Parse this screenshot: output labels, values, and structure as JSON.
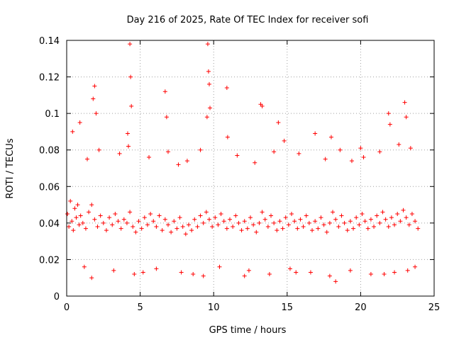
{
  "chart_data": {
    "type": "scatter",
    "title": "Day 216 of 2025, Rate Of TEC Index for receiver sofi",
    "xlabel": "GPS time / hours",
    "ylabel": "ROTI / TECUs",
    "xlim": [
      0,
      25
    ],
    "ylim": [
      0,
      0.14
    ],
    "xticks": [
      0,
      5,
      10,
      15,
      20,
      25
    ],
    "xtick_labels": [
      "0",
      "5",
      "10",
      "15",
      "20",
      "25"
    ],
    "yticks": [
      0,
      0.02,
      0.04,
      0.06,
      0.08,
      0.1,
      0.12,
      0.14
    ],
    "ytick_labels": [
      "0",
      "0.02",
      "0.04",
      "0.06",
      "0.08",
      "0.1",
      "0.12",
      "0.14"
    ],
    "grid": true,
    "marker": "plus",
    "series_color": "#ff0000",
    "series": [
      {
        "name": "ROTI",
        "x": [
          0.05,
          0.15,
          0.25,
          0.35,
          0.45,
          0.55,
          0.65,
          0.75,
          0.85,
          0.95,
          1.1,
          1.3,
          1.5,
          1.7,
          1.9,
          2.1,
          2.3,
          2.5,
          2.7,
          2.9,
          3.1,
          3.3,
          3.5,
          3.7,
          3.9,
          4.1,
          4.3,
          4.5,
          4.7,
          4.9,
          5.1,
          5.3,
          5.5,
          5.7,
          5.9,
          6.1,
          6.3,
          6.5,
          6.7,
          6.9,
          7.1,
          7.3,
          7.5,
          7.7,
          7.9,
          8.1,
          8.3,
          8.5,
          8.7,
          8.9,
          9.1,
          9.3,
          9.5,
          9.7,
          9.9,
          10.1,
          10.3,
          10.5,
          10.7,
          10.9,
          11.1,
          11.3,
          11.5,
          11.7,
          11.9,
          12.1,
          12.3,
          12.5,
          12.7,
          12.9,
          13.1,
          13.3,
          13.5,
          13.7,
          13.9,
          14.1,
          14.3,
          14.5,
          14.7,
          14.9,
          15.1,
          15.3,
          15.5,
          15.7,
          15.9,
          16.1,
          16.3,
          16.5,
          16.7,
          16.9,
          17.1,
          17.3,
          17.5,
          17.7,
          17.9,
          18.1,
          18.3,
          18.5,
          18.7,
          18.9,
          19.1,
          19.3,
          19.5,
          19.7,
          19.9,
          20.1,
          20.3,
          20.5,
          20.7,
          20.9,
          21.1,
          21.3,
          21.5,
          21.7,
          21.9,
          22.1,
          22.3,
          22.5,
          22.7,
          22.9,
          23.1,
          23.3,
          23.5,
          23.7,
          23.9,
          0.4,
          0.9,
          1.8,
          1.9,
          2.0,
          4.3,
          4.35,
          4.4,
          6.7,
          6.8,
          9.6,
          9.65,
          9.7,
          9.75,
          10.9,
          13.2,
          13.3,
          14.4,
          14.8,
          16.9,
          18.0,
          20.0,
          21.9,
          22.0,
          23.0,
          23.1,
          1.4,
          2.2,
          3.6,
          4.2,
          5.6,
          6.9,
          7.6,
          8.2,
          9.1,
          11.6,
          12.8,
          14.1,
          15.8,
          17.6,
          18.6,
          19.4,
          20.2,
          21.3,
          22.6,
          23.4,
          1.2,
          3.2,
          4.6,
          6.1,
          7.8,
          9.3,
          10.4,
          12.4,
          13.8,
          15.2,
          16.6,
          17.9,
          19.3,
          20.7,
          22.3,
          23.7,
          1.7,
          5.2,
          8.6,
          12.1,
          15.6,
          18.3,
          21.6,
          23.2,
          4.15,
          9.55,
          10.95
        ],
        "y": [
          0.045,
          0.038,
          0.052,
          0.041,
          0.036,
          0.048,
          0.043,
          0.05,
          0.039,
          0.044,
          0.04,
          0.037,
          0.046,
          0.05,
          0.042,
          0.038,
          0.044,
          0.04,
          0.036,
          0.043,
          0.039,
          0.045,
          0.041,
          0.037,
          0.042,
          0.04,
          0.046,
          0.038,
          0.035,
          0.041,
          0.037,
          0.043,
          0.039,
          0.045,
          0.041,
          0.038,
          0.044,
          0.036,
          0.042,
          0.039,
          0.035,
          0.041,
          0.037,
          0.043,
          0.038,
          0.034,
          0.039,
          0.036,
          0.042,
          0.038,
          0.044,
          0.04,
          0.046,
          0.042,
          0.038,
          0.043,
          0.039,
          0.045,
          0.041,
          0.037,
          0.042,
          0.038,
          0.044,
          0.04,
          0.036,
          0.041,
          0.037,
          0.043,
          0.039,
          0.035,
          0.04,
          0.046,
          0.042,
          0.038,
          0.044,
          0.04,
          0.036,
          0.041,
          0.037,
          0.043,
          0.039,
          0.045,
          0.041,
          0.037,
          0.042,
          0.038,
          0.044,
          0.04,
          0.036,
          0.041,
          0.037,
          0.043,
          0.039,
          0.035,
          0.04,
          0.046,
          0.042,
          0.038,
          0.044,
          0.04,
          0.036,
          0.041,
          0.037,
          0.043,
          0.039,
          0.045,
          0.041,
          0.037,
          0.042,
          0.038,
          0.044,
          0.04,
          0.046,
          0.042,
          0.038,
          0.043,
          0.039,
          0.045,
          0.041,
          0.047,
          0.043,
          0.039,
          0.045,
          0.041,
          0.037,
          0.09,
          0.095,
          0.108,
          0.115,
          0.1,
          0.138,
          0.12,
          0.104,
          0.112,
          0.098,
          0.138,
          0.123,
          0.116,
          0.103,
          0.114,
          0.105,
          0.104,
          0.095,
          0.085,
          0.089,
          0.087,
          0.081,
          0.1,
          0.094,
          0.106,
          0.098,
          0.075,
          0.08,
          0.078,
          0.082,
          0.076,
          0.079,
          0.072,
          0.074,
          0.08,
          0.077,
          0.073,
          0.079,
          0.078,
          0.075,
          0.08,
          0.074,
          0.076,
          0.079,
          0.083,
          0.081,
          0.016,
          0.014,
          0.012,
          0.015,
          0.013,
          0.011,
          0.016,
          0.014,
          0.012,
          0.015,
          0.013,
          0.011,
          0.014,
          0.012,
          0.013,
          0.016,
          0.01,
          0.013,
          0.012,
          0.011,
          0.013,
          0.008,
          0.012,
          0.014,
          0.089,
          0.098,
          0.087
        ]
      }
    ]
  }
}
